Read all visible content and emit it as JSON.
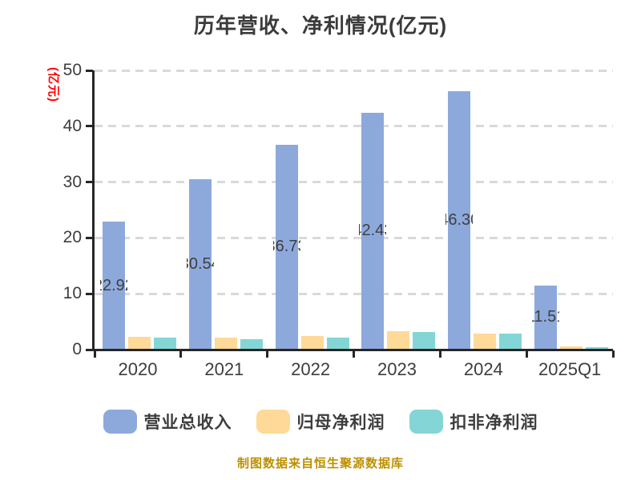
{
  "title": "历年营收、净利情况(亿元)",
  "y_axis": {
    "name": "(亿元)",
    "name_color": "#ff0000",
    "tick_values": [
      0,
      10,
      20,
      30,
      40,
      50
    ]
  },
  "footer": "制图数据来自恒生聚源数据库",
  "legend": {
    "items": [
      {
        "label": "营业总收入",
        "color": "#8DA9DC"
      },
      {
        "label": "归母净利润",
        "color": "#FFD998"
      },
      {
        "label": "扣非净利润",
        "color": "#84D6D6"
      }
    ]
  },
  "chart_data": {
    "type": "bar",
    "title": "历年营收、净利情况(亿元)",
    "categories": [
      "2020",
      "2021",
      "2022",
      "2023",
      "2024",
      "2025Q1"
    ],
    "series": [
      {
        "name": "营业总收入",
        "color": "#8DA9DC",
        "values": [
          22.92,
          30.54,
          36.73,
          42.43,
          46.3,
          11.51
        ],
        "labels": [
          "22.92",
          "30.54",
          "36.73",
          "42.43",
          "46.30",
          "11.51"
        ]
      },
      {
        "name": "归母净利润",
        "color": "#FFD998",
        "values": [
          2.3,
          2.2,
          2.4,
          3.3,
          2.9,
          0.6
        ]
      },
      {
        "name": "扣非净利润",
        "color": "#84D6D6",
        "values": [
          2.2,
          1.9,
          2.1,
          3.2,
          2.9,
          0.4
        ]
      }
    ],
    "ylabel": "(亿元)",
    "ylim": [
      0,
      50
    ],
    "grid": "horizontal-dashed",
    "legend_position": "bottom"
  }
}
